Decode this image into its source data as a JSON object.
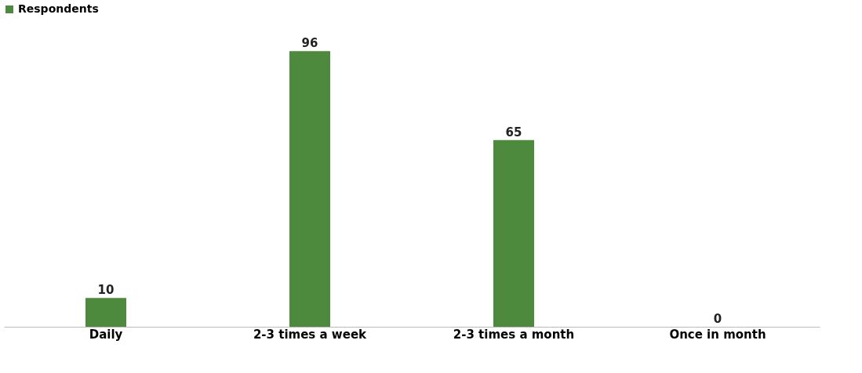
{
  "chart_data": {
    "type": "bar",
    "categories": [
      "Daily",
      "2-3 times a week",
      "2-3 times a month",
      "Once in month"
    ],
    "series": [
      {
        "name": "Respondents",
        "color": "#4e8a3e",
        "values": [
          10,
          96,
          65,
          0
        ]
      }
    ],
    "data_labels": true,
    "legend": "top",
    "grid": false
  }
}
